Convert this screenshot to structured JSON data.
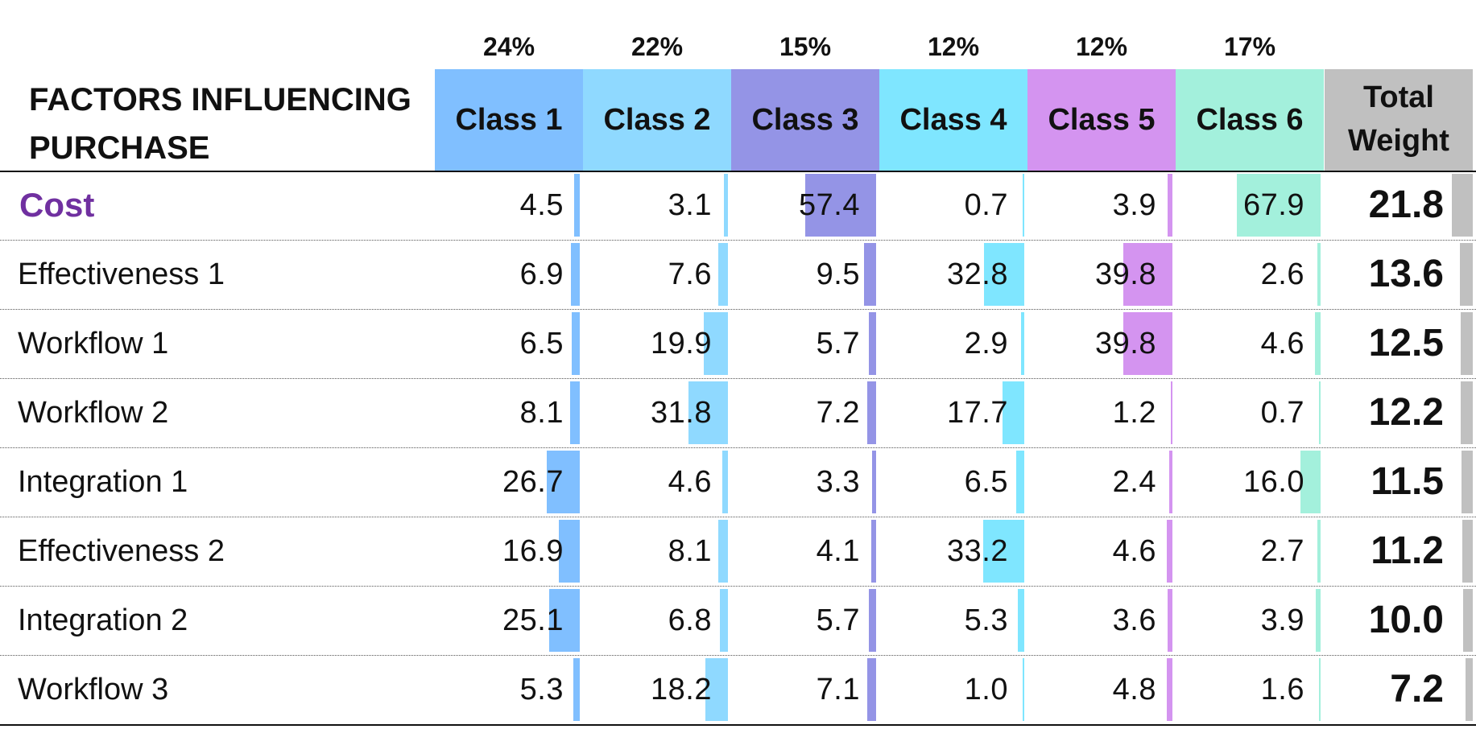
{
  "chart_data": {
    "type": "table",
    "header_title_lines": [
      "FACTORS INFLUENCING",
      "PURCHASE"
    ],
    "columns": [
      {
        "name": "Class 1",
        "share": "24%",
        "color": "#80BFFF"
      },
      {
        "name": "Class 2",
        "share": "22%",
        "color": "#8FD9FF"
      },
      {
        "name": "Class 3",
        "share": "15%",
        "color": "#9494E6"
      },
      {
        "name": "Class 4",
        "share": "12%",
        "color": "#7FE6FF"
      },
      {
        "name": "Class 5",
        "share": "12%",
        "color": "#D494F0"
      },
      {
        "name": "Class 6",
        "share": "17%",
        "color": "#A3F0DC"
      }
    ],
    "total_header_lines": [
      "Total",
      "Weight"
    ],
    "total_color": "#C0C0C0",
    "highlight_color": "#7030A0",
    "value_bar_max": 67.9,
    "total_bar_max": 21.8,
    "rows": [
      {
        "label": "Cost",
        "values": [
          "4.5",
          "3.1",
          "57.4",
          "0.7",
          "3.9",
          "67.9"
        ],
        "total": "21.8",
        "highlight": true
      },
      {
        "label": "Effectiveness 1",
        "values": [
          "6.9",
          "7.6",
          "9.5",
          "32.8",
          "39.8",
          "2.6"
        ],
        "total": "13.6"
      },
      {
        "label": "Workflow 1",
        "values": [
          "6.5",
          "19.9",
          "5.7",
          "2.9",
          "39.8",
          "4.6"
        ],
        "total": "12.5"
      },
      {
        "label": "Workflow 2",
        "values": [
          "8.1",
          "31.8",
          "7.2",
          "17.7",
          "1.2",
          "0.7"
        ],
        "total": "12.2"
      },
      {
        "label": "Integration 1",
        "values": [
          "26.7",
          "4.6",
          "3.3",
          "6.5",
          "2.4",
          "16.0"
        ],
        "total": "11.5"
      },
      {
        "label": "Effectiveness 2",
        "values": [
          "16.9",
          "8.1",
          "4.1",
          "33.2",
          "4.6",
          "2.7"
        ],
        "total": "11.2"
      },
      {
        "label": "Integration 2",
        "values": [
          "25.1",
          "6.8",
          "5.7",
          "5.3",
          "3.6",
          "3.9"
        ],
        "total": "10.0"
      },
      {
        "label": "Workflow 3",
        "values": [
          "5.3",
          "18.2",
          "7.1",
          "1.0",
          "4.8",
          "1.6"
        ],
        "total": "7.2"
      }
    ]
  }
}
